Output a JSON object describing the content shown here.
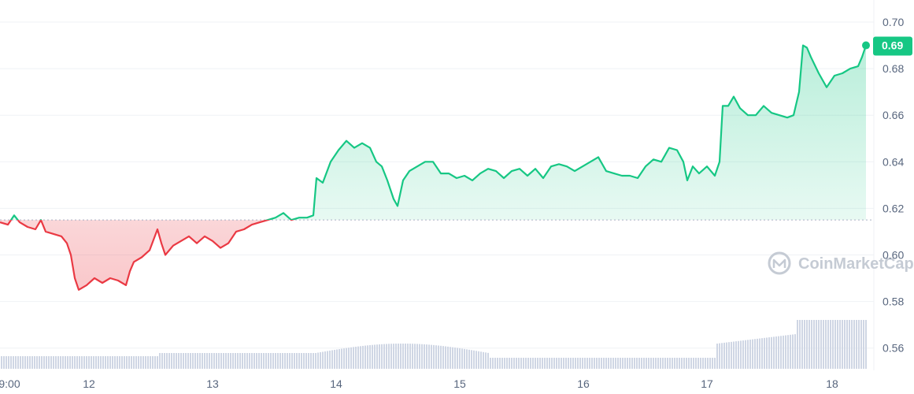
{
  "watermark": "CoinMarketCap",
  "chart_data": {
    "type": "area",
    "reference_line": 0.615,
    "ylim": [
      0.55,
      0.7
    ],
    "y_ticks": [
      "0.70",
      "0.68",
      "0.66",
      "0.64",
      "0.62",
      "0.60",
      "0.58",
      "0.56"
    ],
    "x_ticks": [
      "9:00",
      "12",
      "13",
      "14",
      "15",
      "16",
      "17",
      "18"
    ],
    "current_price_label": "0.69",
    "colors": {
      "up": "#16c784",
      "down": "#ea3943",
      "volume": "#cfd6e4",
      "badge": "#16c784"
    },
    "series": [
      {
        "points": [
          [
            0,
            0.614
          ],
          [
            10,
            0.613
          ],
          [
            18,
            0.617
          ],
          [
            25,
            0.614
          ],
          [
            35,
            0.612
          ],
          [
            45,
            0.611
          ],
          [
            52,
            0.615
          ],
          [
            58,
            0.61
          ],
          [
            68,
            0.609
          ],
          [
            78,
            0.608
          ],
          [
            85,
            0.605
          ],
          [
            90,
            0.6
          ],
          [
            95,
            0.59
          ],
          [
            100,
            0.585
          ],
          [
            110,
            0.587
          ],
          [
            120,
            0.59
          ],
          [
            130,
            0.588
          ],
          [
            140,
            0.59
          ],
          [
            150,
            0.589
          ],
          [
            160,
            0.587
          ],
          [
            165,
            0.593
          ],
          [
            170,
            0.597
          ],
          [
            180,
            0.599
          ],
          [
            190,
            0.602
          ],
          [
            200,
            0.611
          ],
          [
            205,
            0.605
          ],
          [
            210,
            0.6
          ],
          [
            220,
            0.604
          ],
          [
            230,
            0.606
          ],
          [
            240,
            0.608
          ],
          [
            250,
            0.605
          ],
          [
            260,
            0.608
          ],
          [
            270,
            0.606
          ],
          [
            280,
            0.603
          ],
          [
            290,
            0.605
          ],
          [
            300,
            0.61
          ],
          [
            310,
            0.611
          ],
          [
            320,
            0.613
          ],
          [
            330,
            0.614
          ],
          [
            340,
            0.615
          ],
          [
            350,
            0.616
          ],
          [
            360,
            0.618
          ],
          [
            370,
            0.615
          ],
          [
            380,
            0.616
          ],
          [
            390,
            0.616
          ],
          [
            398,
            0.617
          ],
          [
            402,
            0.633
          ],
          [
            410,
            0.631
          ],
          [
            420,
            0.64
          ],
          [
            430,
            0.645
          ],
          [
            440,
            0.649
          ],
          [
            450,
            0.646
          ],
          [
            460,
            0.648
          ],
          [
            470,
            0.646
          ],
          [
            478,
            0.64
          ],
          [
            485,
            0.638
          ],
          [
            492,
            0.632
          ],
          [
            500,
            0.624
          ],
          [
            505,
            0.621
          ],
          [
            512,
            0.632
          ],
          [
            520,
            0.636
          ],
          [
            530,
            0.638
          ],
          [
            540,
            0.64
          ],
          [
            550,
            0.64
          ],
          [
            560,
            0.635
          ],
          [
            570,
            0.635
          ],
          [
            580,
            0.633
          ],
          [
            590,
            0.634
          ],
          [
            600,
            0.632
          ],
          [
            610,
            0.635
          ],
          [
            620,
            0.637
          ],
          [
            630,
            0.636
          ],
          [
            640,
            0.633
          ],
          [
            650,
            0.636
          ],
          [
            660,
            0.637
          ],
          [
            670,
            0.634
          ],
          [
            680,
            0.637
          ],
          [
            690,
            0.633
          ],
          [
            700,
            0.638
          ],
          [
            710,
            0.639
          ],
          [
            720,
            0.638
          ],
          [
            730,
            0.636
          ],
          [
            740,
            0.638
          ],
          [
            750,
            0.64
          ],
          [
            760,
            0.642
          ],
          [
            770,
            0.636
          ],
          [
            780,
            0.635
          ],
          [
            790,
            0.634
          ],
          [
            800,
            0.634
          ],
          [
            810,
            0.633
          ],
          [
            820,
            0.638
          ],
          [
            830,
            0.641
          ],
          [
            840,
            0.64
          ],
          [
            850,
            0.646
          ],
          [
            860,
            0.645
          ],
          [
            868,
            0.64
          ],
          [
            873,
            0.632
          ],
          [
            880,
            0.638
          ],
          [
            888,
            0.635
          ],
          [
            898,
            0.638
          ],
          [
            908,
            0.634
          ],
          [
            914,
            0.64
          ],
          [
            918,
            0.664
          ],
          [
            925,
            0.664
          ],
          [
            932,
            0.668
          ],
          [
            940,
            0.663
          ],
          [
            950,
            0.66
          ],
          [
            960,
            0.66
          ],
          [
            970,
            0.664
          ],
          [
            980,
            0.661
          ],
          [
            990,
            0.66
          ],
          [
            1000,
            0.659
          ],
          [
            1008,
            0.66
          ],
          [
            1015,
            0.67
          ],
          [
            1020,
            0.69
          ],
          [
            1025,
            0.689
          ],
          [
            1030,
            0.685
          ],
          [
            1040,
            0.678
          ],
          [
            1050,
            0.672
          ],
          [
            1060,
            0.677
          ],
          [
            1070,
            0.678
          ],
          [
            1080,
            0.68
          ],
          [
            1090,
            0.681
          ],
          [
            1095,
            0.685
          ],
          [
            1100,
            0.69
          ]
        ]
      }
    ]
  }
}
